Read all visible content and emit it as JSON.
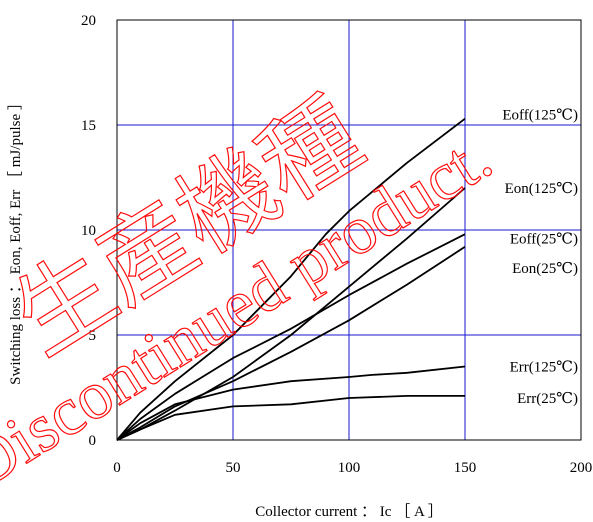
{
  "chart_data": {
    "type": "line",
    "xlabel": "Collector current ： Ic ［ A ］",
    "ylabel": "Switching loss ： Eon, Eoff, Err ［ mJ/pulse ］",
    "xlim": [
      0,
      200
    ],
    "ylim": [
      0,
      20
    ],
    "x_ticks": [
      "0",
      "50",
      "100",
      "150",
      "200"
    ],
    "y_ticks": [
      "0",
      "5",
      "10",
      "15",
      "20"
    ],
    "grid": true,
    "grid_color": "#1a1acc",
    "line_color": "#000000",
    "watermark_color": "#ff0000",
    "series": [
      {
        "name": "Eoff(125℃)",
        "label_value": 15.5,
        "x": [
          0,
          10,
          25,
          50,
          75,
          90,
          100,
          125,
          150
        ],
        "y": [
          0,
          1.3,
          2.8,
          5.0,
          7.8,
          9.8,
          10.9,
          13.2,
          15.3
        ]
      },
      {
        "name": "Eon(125℃)",
        "label_value": 12.0,
        "x": [
          0,
          10,
          25,
          50,
          75,
          100,
          125,
          150
        ],
        "y": [
          0,
          0.5,
          1.4,
          3.0,
          5.0,
          7.3,
          9.6,
          12.0
        ]
      },
      {
        "name": "Eoff(25℃)",
        "label_value": 9.6,
        "x": [
          0,
          10,
          25,
          50,
          75,
          100,
          125,
          150
        ],
        "y": [
          0,
          1.0,
          2.2,
          3.9,
          5.3,
          6.9,
          8.4,
          9.8
        ]
      },
      {
        "name": "Eon(25℃)",
        "label_value": 8.2,
        "x": [
          0,
          10,
          25,
          50,
          75,
          100,
          125,
          150
        ],
        "y": [
          0,
          0.6,
          1.6,
          2.8,
          4.2,
          5.7,
          7.4,
          9.2
        ]
      },
      {
        "name": "Err(125℃)",
        "label_value": 3.5,
        "x": [
          0,
          10,
          25,
          50,
          75,
          100,
          110,
          125,
          150
        ],
        "y": [
          0,
          0.8,
          1.7,
          2.4,
          2.8,
          3.0,
          3.1,
          3.2,
          3.5
        ]
      },
      {
        "name": "Err(25℃)",
        "label_value": 2.0,
        "x": [
          0,
          10,
          25,
          50,
          75,
          100,
          125,
          150
        ],
        "y": [
          0,
          0.5,
          1.2,
          1.6,
          1.7,
          2.0,
          2.1,
          2.1
        ]
      }
    ]
  },
  "watermark": {
    "line1": "生産機種",
    "line2": "Discontinued product."
  }
}
